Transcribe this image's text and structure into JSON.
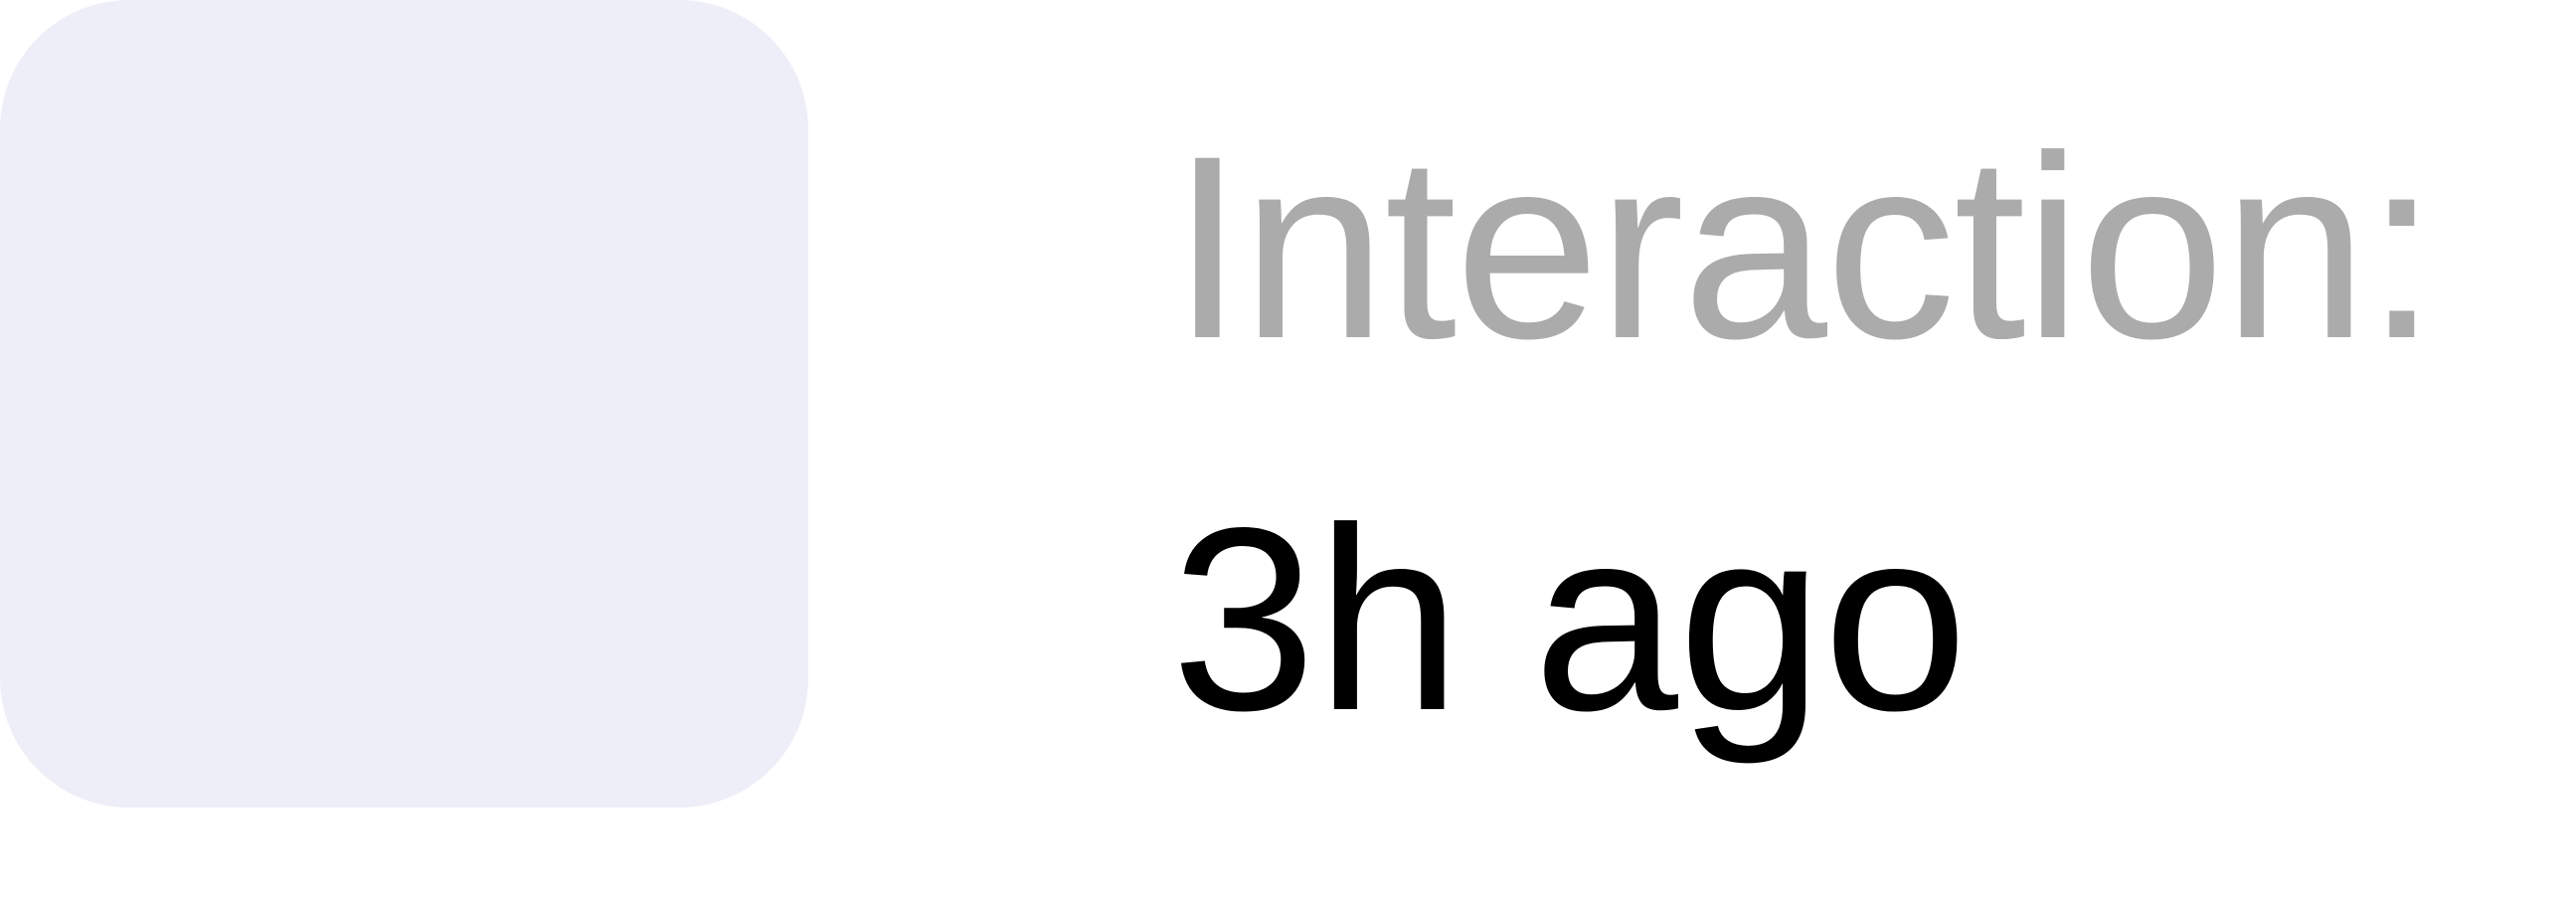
{
  "card": {
    "label": "Interaction:",
    "value": "3h ago"
  },
  "colors": {
    "tile_background": "#eeeef9",
    "label_text": "#ababab",
    "value_text": "#000000"
  }
}
